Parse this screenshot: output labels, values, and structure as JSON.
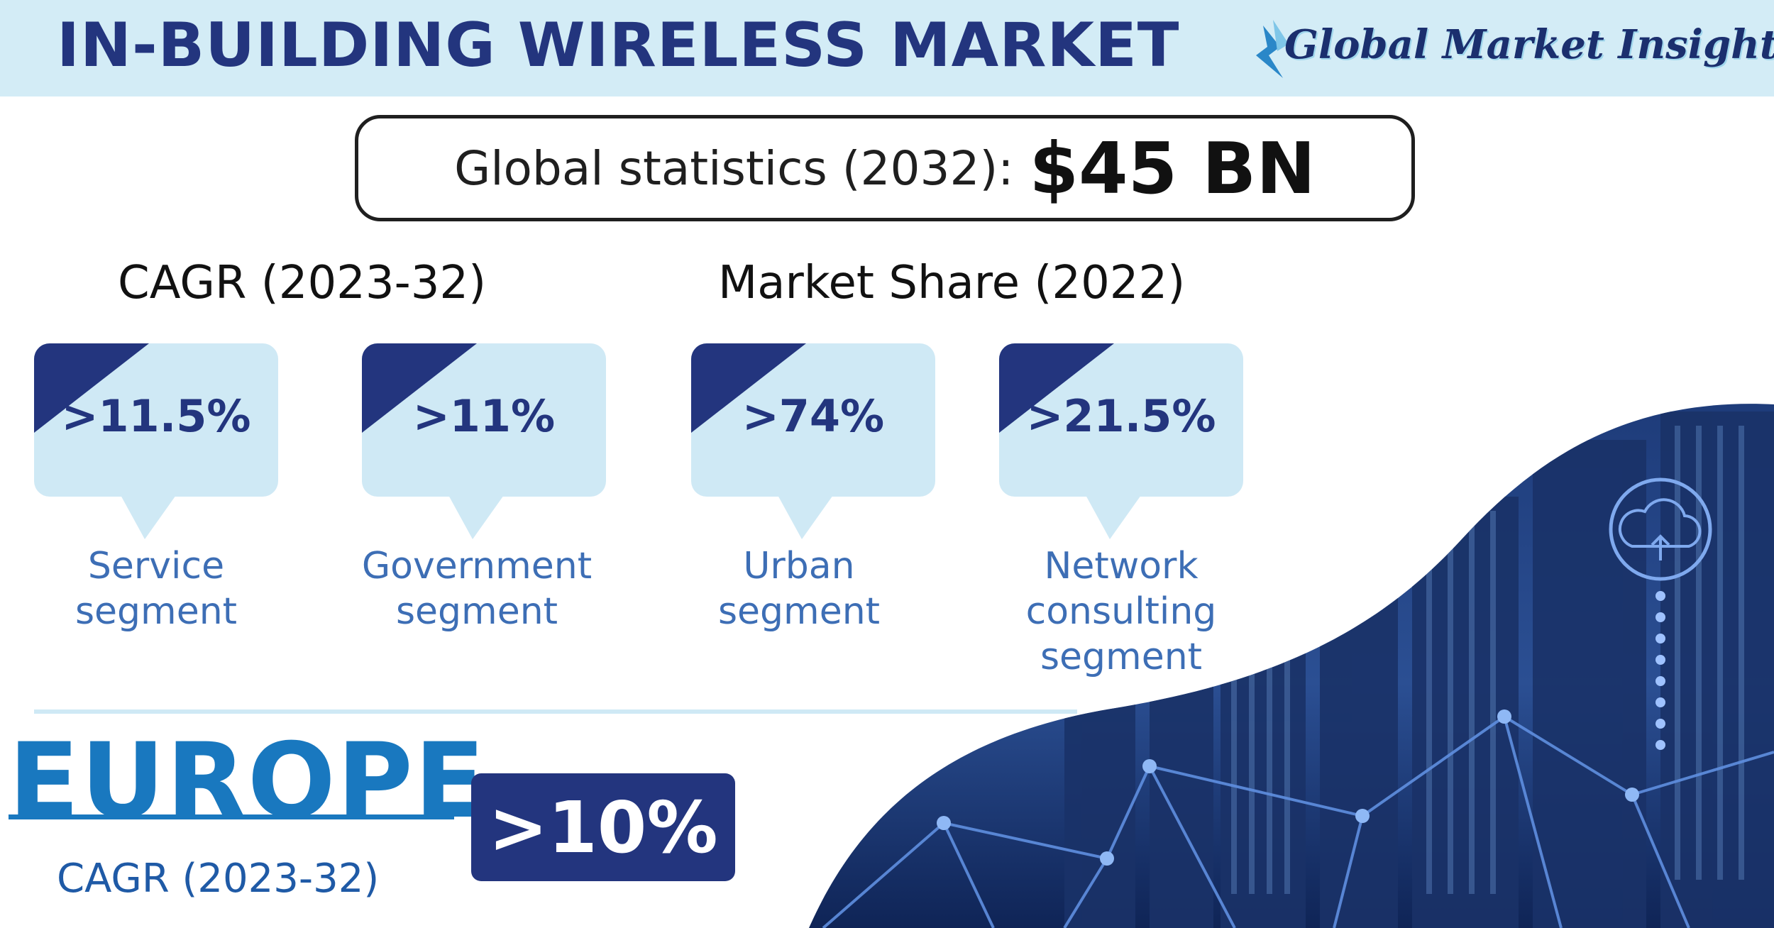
{
  "header": {
    "title": "IN-BUILDING WIRELESS MARKET",
    "logo_text": "Global Market Insights"
  },
  "stats": {
    "label": "Global statistics (2032):",
    "value": "$45 BN"
  },
  "sections": {
    "cagr_heading": "CAGR (2023-32)",
    "share_heading": "Market Share (2022)"
  },
  "bubbles": [
    {
      "value": ">11.5%",
      "line1": "Service",
      "line2": "segment",
      "line3": ""
    },
    {
      "value": ">11%",
      "line1": "Government",
      "line2": "segment",
      "line3": ""
    },
    {
      "value": ">74%",
      "line1": "Urban",
      "line2": "segment",
      "line3": ""
    },
    {
      "value": ">21.5%",
      "line1": "Network",
      "line2": "consulting",
      "line3": "segment"
    }
  ],
  "region": {
    "name": "EUROPE",
    "value": ">10%",
    "caption": "CAGR (2023-32)"
  },
  "colors": {
    "navy": "#23357e",
    "light_blue": "#cfe9f5",
    "europe_blue": "#1978bf",
    "segment_text": "#3d6eb5"
  }
}
